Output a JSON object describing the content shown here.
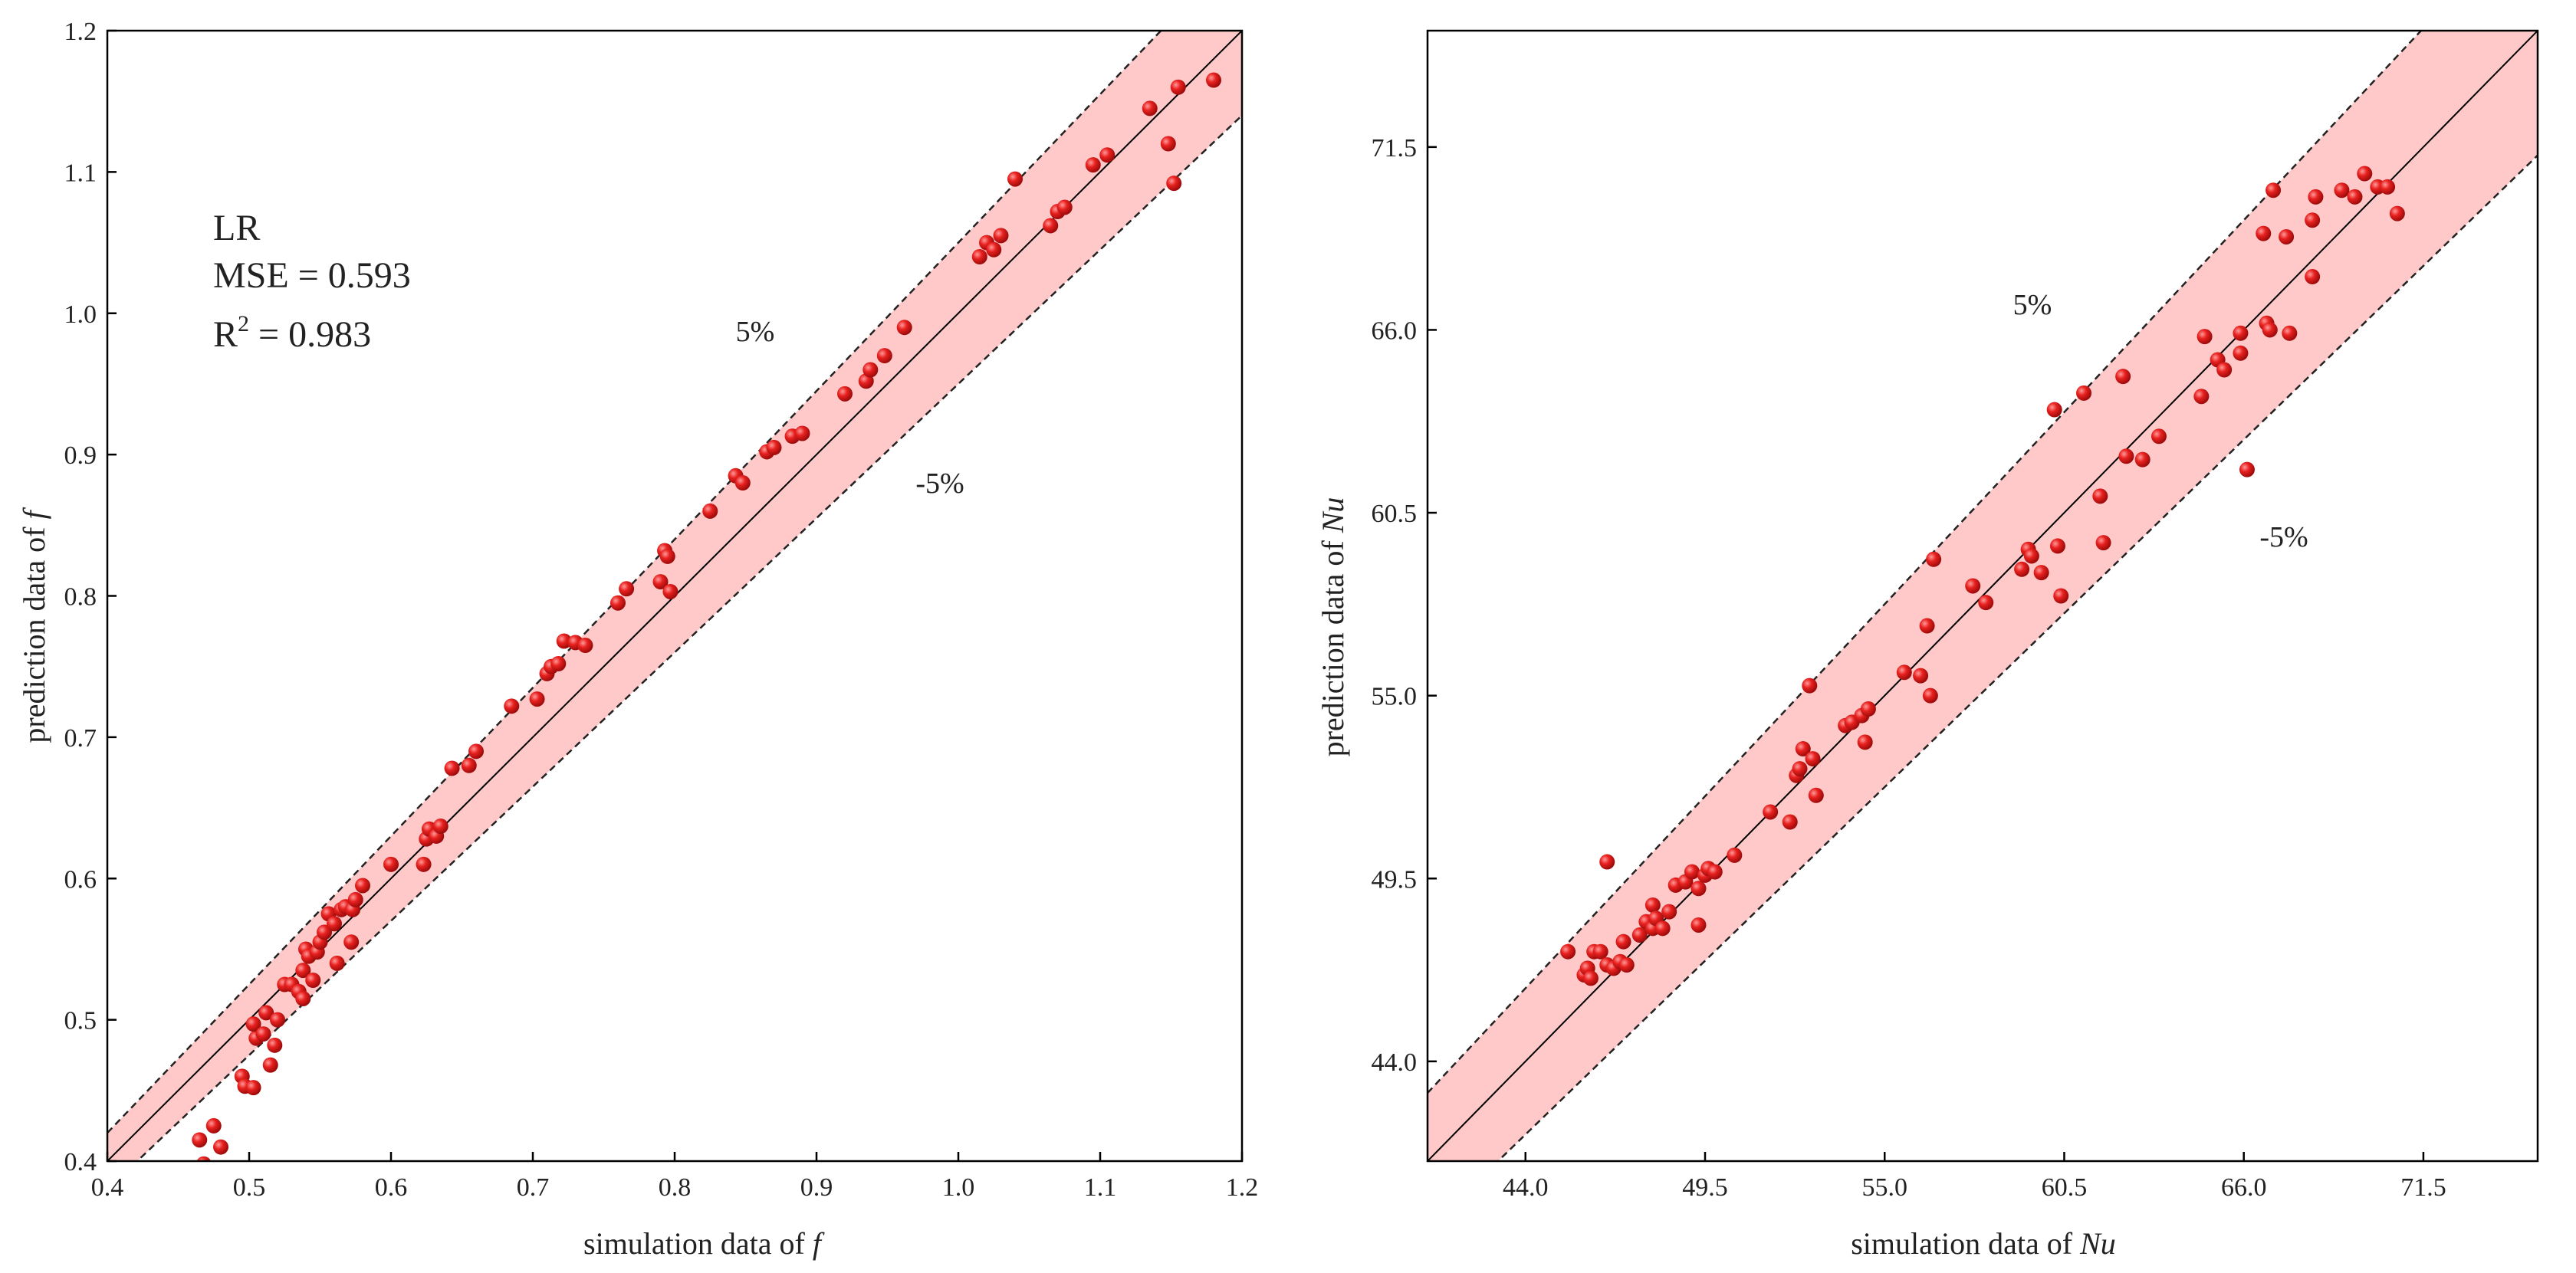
{
  "chart_data": [
    {
      "type": "scatter",
      "panel": "left",
      "title": "",
      "xlabel": "simulation data of ",
      "xlabel_var": "f",
      "ylabel": "prediction data of ",
      "ylabel_var": "f",
      "xlim": [
        0.4,
        1.2
      ],
      "ylim": [
        0.4,
        1.2
      ],
      "xticks": [
        "0.4",
        "0.5",
        "0.6",
        "0.7",
        "0.8",
        "0.9",
        "1.0",
        "1.1",
        "1.2"
      ],
      "yticks": [
        "0.4",
        "0.5",
        "0.6",
        "0.7",
        "0.8",
        "0.9",
        "1.0",
        "1.1",
        "1.2"
      ],
      "band_upper_label": "5%",
      "band_lower_label": "-5%",
      "band_percent": 5,
      "annotation": {
        "model": "LR",
        "mse": "MSE = 0.593",
        "r2_prefix": "R",
        "r2_sup": "2",
        "r2_value": " = 0.983"
      },
      "colors": {
        "band": "#ffc9c9",
        "point": "#e8211f",
        "line": "#000000"
      },
      "points": [
        [
          0.465,
          0.415
        ],
        [
          0.475,
          0.425
        ],
        [
          0.48,
          0.41
        ],
        [
          0.468,
          0.398
        ],
        [
          0.495,
          0.46
        ],
        [
          0.497,
          0.453
        ],
        [
          0.503,
          0.452
        ],
        [
          0.505,
          0.487
        ],
        [
          0.503,
          0.497
        ],
        [
          0.51,
          0.49
        ],
        [
          0.512,
          0.505
        ],
        [
          0.515,
          0.468
        ],
        [
          0.518,
          0.482
        ],
        [
          0.52,
          0.5
        ],
        [
          0.525,
          0.525
        ],
        [
          0.53,
          0.525
        ],
        [
          0.535,
          0.52
        ],
        [
          0.538,
          0.515
        ],
        [
          0.538,
          0.535
        ],
        [
          0.54,
          0.55
        ],
        [
          0.542,
          0.545
        ],
        [
          0.545,
          0.528
        ],
        [
          0.548,
          0.548
        ],
        [
          0.55,
          0.555
        ],
        [
          0.553,
          0.562
        ],
        [
          0.556,
          0.575
        ],
        [
          0.56,
          0.568
        ],
        [
          0.562,
          0.54
        ],
        [
          0.565,
          0.578
        ],
        [
          0.568,
          0.58
        ],
        [
          0.572,
          0.555
        ],
        [
          0.573,
          0.578
        ],
        [
          0.575,
          0.585
        ],
        [
          0.58,
          0.595
        ],
        [
          0.6,
          0.61
        ],
        [
          0.623,
          0.61
        ],
        [
          0.625,
          0.628
        ],
        [
          0.627,
          0.635
        ],
        [
          0.632,
          0.63
        ],
        [
          0.635,
          0.637
        ],
        [
          0.643,
          0.678
        ],
        [
          0.655,
          0.68
        ],
        [
          0.66,
          0.69
        ],
        [
          0.685,
          0.722
        ],
        [
          0.703,
          0.727
        ],
        [
          0.71,
          0.745
        ],
        [
          0.713,
          0.75
        ],
        [
          0.718,
          0.752
        ],
        [
          0.722,
          0.768
        ],
        [
          0.73,
          0.767
        ],
        [
          0.737,
          0.765
        ],
        [
          0.76,
          0.795
        ],
        [
          0.766,
          0.805
        ],
        [
          0.79,
          0.81
        ],
        [
          0.793,
          0.832
        ],
        [
          0.795,
          0.828
        ],
        [
          0.797,
          0.803
        ],
        [
          0.825,
          0.86
        ],
        [
          0.843,
          0.885
        ],
        [
          0.848,
          0.88
        ],
        [
          0.865,
          0.902
        ],
        [
          0.87,
          0.905
        ],
        [
          0.883,
          0.913
        ],
        [
          0.89,
          0.915
        ],
        [
          0.92,
          0.943
        ],
        [
          0.935,
          0.952
        ],
        [
          0.938,
          0.96
        ],
        [
          0.948,
          0.97
        ],
        [
          0.962,
          0.99
        ],
        [
          1.015,
          1.04
        ],
        [
          1.02,
          1.05
        ],
        [
          1.025,
          1.045
        ],
        [
          1.03,
          1.055
        ],
        [
          1.04,
          1.095
        ],
        [
          1.065,
          1.062
        ],
        [
          1.07,
          1.072
        ],
        [
          1.075,
          1.075
        ],
        [
          1.095,
          1.105
        ],
        [
          1.105,
          1.112
        ],
        [
          1.135,
          1.145
        ],
        [
          1.148,
          1.12
        ],
        [
          1.152,
          1.092
        ],
        [
          1.155,
          1.16
        ],
        [
          1.18,
          1.165
        ]
      ]
    },
    {
      "type": "scatter",
      "panel": "right",
      "title": "",
      "xlabel": "simulation data of ",
      "xlabel_var": "Nu",
      "ylabel": "prediction data of ",
      "ylabel_var": "Nu",
      "xlim": [
        41.0,
        75.0
      ],
      "ylim": [
        41.0,
        75.0
      ],
      "xticks": [
        "44.0",
        "49.5",
        "55.0",
        "60.5",
        "66.0",
        "71.5"
      ],
      "yticks": [
        "44.0",
        "49.5",
        "55.0",
        "60.5",
        "66.0",
        "71.5"
      ],
      "band_upper_label": "5%",
      "band_lower_label": "-5%",
      "band_percent": 5,
      "colors": {
        "band": "#ffc9c9",
        "point": "#e8211f",
        "line": "#000000"
      },
      "points": [
        [
          45.3,
          47.3
        ],
        [
          45.8,
          46.6
        ],
        [
          45.9,
          46.8
        ],
        [
          46.0,
          46.5
        ],
        [
          46.1,
          47.3
        ],
        [
          46.3,
          47.3
        ],
        [
          46.5,
          46.9
        ],
        [
          46.7,
          46.8
        ],
        [
          46.9,
          47.0
        ],
        [
          47.0,
          47.6
        ],
        [
          47.1,
          46.9
        ],
        [
          46.5,
          50.0
        ],
        [
          47.5,
          47.8
        ],
        [
          47.7,
          48.2
        ],
        [
          47.9,
          48.7
        ],
        [
          47.9,
          48.0
        ],
        [
          48.0,
          48.3
        ],
        [
          48.2,
          48.0
        ],
        [
          48.4,
          48.5
        ],
        [
          48.6,
          49.3
        ],
        [
          48.9,
          49.4
        ],
        [
          49.1,
          49.7
        ],
        [
          49.3,
          48.1
        ],
        [
          49.3,
          49.2
        ],
        [
          49.5,
          49.6
        ],
        [
          49.6,
          49.8
        ],
        [
          49.8,
          49.7
        ],
        [
          50.4,
          50.2
        ],
        [
          51.5,
          51.5
        ],
        [
          52.1,
          51.2
        ],
        [
          52.3,
          52.6
        ],
        [
          52.4,
          52.8
        ],
        [
          52.5,
          53.4
        ],
        [
          52.7,
          55.3
        ],
        [
          52.8,
          53.1
        ],
        [
          52.9,
          52.0
        ],
        [
          53.8,
          54.1
        ],
        [
          54.0,
          54.2
        ],
        [
          54.3,
          54.4
        ],
        [
          54.4,
          53.6
        ],
        [
          54.5,
          54.6
        ],
        [
          55.6,
          55.7
        ],
        [
          56.1,
          55.6
        ],
        [
          56.3,
          57.1
        ],
        [
          56.4,
          55.0
        ],
        [
          56.5,
          59.1
        ],
        [
          57.7,
          58.3
        ],
        [
          58.1,
          57.8
        ],
        [
          59.2,
          58.8
        ],
        [
          59.4,
          59.4
        ],
        [
          59.5,
          59.2
        ],
        [
          59.8,
          58.7
        ],
        [
          60.3,
          59.5
        ],
        [
          60.2,
          63.6
        ],
        [
          60.4,
          58.0
        ],
        [
          61.1,
          64.1
        ],
        [
          61.6,
          61.0
        ],
        [
          61.7,
          59.6
        ],
        [
          62.3,
          64.6
        ],
        [
          62.4,
          62.2
        ],
        [
          62.9,
          62.1
        ],
        [
          63.4,
          62.8
        ],
        [
          64.7,
          64.0
        ],
        [
          64.8,
          65.8
        ],
        [
          65.2,
          65.1
        ],
        [
          65.4,
          64.8
        ],
        [
          65.9,
          65.3
        ],
        [
          65.9,
          65.9
        ],
        [
          66.1,
          61.8
        ],
        [
          66.6,
          68.9
        ],
        [
          66.7,
          66.2
        ],
        [
          66.8,
          66.0
        ],
        [
          66.9,
          70.2
        ],
        [
          67.3,
          68.8
        ],
        [
          67.4,
          65.9
        ],
        [
          68.1,
          67.6
        ],
        [
          68.1,
          69.3
        ],
        [
          68.2,
          70.0
        ],
        [
          69.0,
          70.2
        ],
        [
          69.4,
          70.0
        ],
        [
          69.7,
          70.7
        ],
        [
          70.1,
          70.3
        ],
        [
          70.4,
          70.3
        ],
        [
          70.7,
          69.5
        ]
      ]
    }
  ]
}
